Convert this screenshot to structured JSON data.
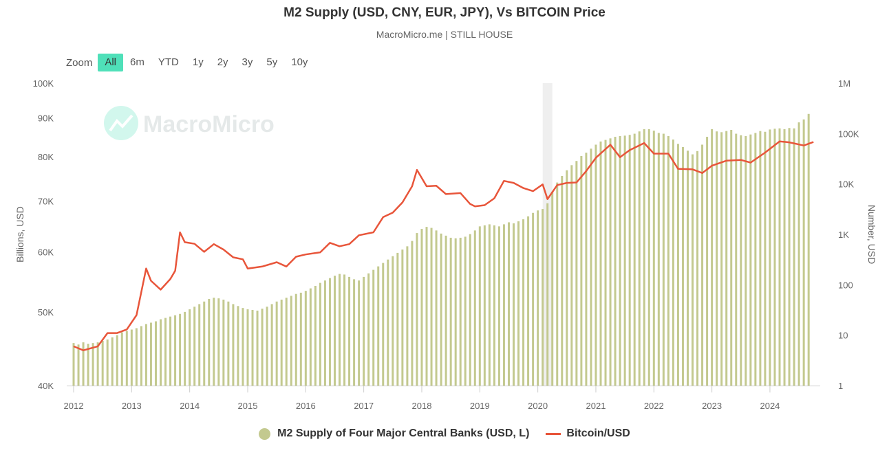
{
  "header": {
    "title": "M2 Supply (USD, CNY, EUR, JPY), Vs BITCOIN Price",
    "subtitle": "MacroMicro.me | STILL HOUSE"
  },
  "zoom": {
    "label": "Zoom",
    "buttons": [
      "All",
      "6m",
      "YTD",
      "1y",
      "2y",
      "3y",
      "5y",
      "10y"
    ],
    "active": "All"
  },
  "watermark": {
    "text": "MacroMicro"
  },
  "colors": {
    "bars": "#c3c98f",
    "line": "#e8553a",
    "active_button": "#4fe0b9",
    "shade": "#efefef"
  },
  "chart_data": {
    "type": "bar+line",
    "title": "M2 Supply (USD, CNY, EUR, JPY), Vs BITCOIN Price",
    "xlabel": "",
    "x_ticks": [
      "2012",
      "2013",
      "2014",
      "2015",
      "2016",
      "2017",
      "2018",
      "2019",
      "2020",
      "2021",
      "2022",
      "2023",
      "2024"
    ],
    "left_axis": {
      "label": "Billions, USD",
      "scale": "log",
      "range": [
        40000,
        100000
      ],
      "ticks": [
        "40K",
        "50K",
        "60K",
        "70K",
        "80K",
        "90K",
        "100K"
      ],
      "tick_values": [
        40000,
        50000,
        60000,
        70000,
        80000,
        90000,
        100000
      ]
    },
    "right_axis": {
      "label": "Number, USD",
      "scale": "log",
      "range": [
        1,
        1000000
      ],
      "ticks": [
        "1",
        "10",
        "100",
        "1K",
        "10K",
        "100K",
        "1M"
      ],
      "tick_values": [
        1,
        10,
        100,
        1000,
        10000,
        100000,
        1000000
      ]
    },
    "shaded_period": [
      "2020-02",
      "2020-04"
    ],
    "legend_position": "bottom",
    "grid": false,
    "series": [
      {
        "name": "M2 Supply of Four Major Central Banks (USD, L)",
        "type": "bar",
        "axis": "left",
        "unit": "billions USD",
        "start": "2012-01",
        "frequency": "monthly",
        "values": [
          45500,
          45300,
          45600,
          45400,
          45500,
          45600,
          45800,
          46000,
          46300,
          46600,
          47000,
          47200,
          47400,
          47600,
          47900,
          48200,
          48400,
          48600,
          48900,
          49100,
          49300,
          49500,
          49700,
          50000,
          50400,
          50800,
          51200,
          51600,
          52000,
          52200,
          52100,
          51900,
          51600,
          51200,
          50900,
          50600,
          50400,
          50300,
          50200,
          50500,
          50800,
          51200,
          51600,
          51900,
          52200,
          52500,
          52800,
          53000,
          53300,
          53700,
          54100,
          54600,
          55000,
          55400,
          55800,
          56100,
          56000,
          55600,
          55200,
          55000,
          55600,
          56200,
          56800,
          57400,
          58000,
          58600,
          59200,
          59800,
          60400,
          61000,
          62000,
          63500,
          64300,
          64700,
          64500,
          64000,
          63400,
          63000,
          62600,
          62500,
          62600,
          62800,
          63300,
          64000,
          64800,
          65000,
          65200,
          65000,
          64800,
          65200,
          65600,
          65400,
          65800,
          66200,
          66800,
          67500,
          68000,
          68300,
          69500,
          72000,
          74000,
          75500,
          76800,
          78000,
          79000,
          80200,
          81000,
          82000,
          83000,
          83800,
          84200,
          84600,
          85000,
          85200,
          85300,
          85500,
          85800,
          86400,
          87000,
          87000,
          86600,
          86000,
          85800,
          85200,
          84300,
          83200,
          82400,
          81500,
          80600,
          81400,
          83000,
          85000,
          87000,
          86400,
          86200,
          86500,
          86800,
          85800,
          85400,
          85200,
          85600,
          86000,
          86500,
          86300,
          86900,
          87100,
          87200,
          87000,
          87300,
          87200,
          88800,
          89600,
          91100
        ]
      },
      {
        "name": "Bitcoin/USD",
        "type": "line",
        "axis": "right",
        "unit": "USD",
        "points": [
          [
            "2012-01",
            6
          ],
          [
            "2012-03",
            5
          ],
          [
            "2012-06",
            6
          ],
          [
            "2012-08",
            11
          ],
          [
            "2012-10",
            11
          ],
          [
            "2012-12",
            13
          ],
          [
            "2013-02",
            25
          ],
          [
            "2013-04",
            210
          ],
          [
            "2013-05",
            120
          ],
          [
            "2013-07",
            80
          ],
          [
            "2013-09",
            130
          ],
          [
            "2013-10",
            190
          ],
          [
            "2013-11",
            1100
          ],
          [
            "2013-12",
            700
          ],
          [
            "2014-02",
            650
          ],
          [
            "2014-04",
            450
          ],
          [
            "2014-06",
            640
          ],
          [
            "2014-08",
            500
          ],
          [
            "2014-10",
            350
          ],
          [
            "2014-12",
            320
          ],
          [
            "2015-01",
            210
          ],
          [
            "2015-04",
            230
          ],
          [
            "2015-07",
            280
          ],
          [
            "2015-09",
            230
          ],
          [
            "2015-11",
            360
          ],
          [
            "2016-01",
            400
          ],
          [
            "2016-04",
            440
          ],
          [
            "2016-06",
            680
          ],
          [
            "2016-08",
            580
          ],
          [
            "2016-10",
            640
          ],
          [
            "2016-12",
            960
          ],
          [
            "2017-03",
            1100
          ],
          [
            "2017-05",
            2200
          ],
          [
            "2017-07",
            2700
          ],
          [
            "2017-09",
            4300
          ],
          [
            "2017-11",
            9000
          ],
          [
            "2017-12",
            19000
          ],
          [
            "2018-02",
            9000
          ],
          [
            "2018-04",
            9200
          ],
          [
            "2018-06",
            6300
          ],
          [
            "2018-09",
            6600
          ],
          [
            "2018-11",
            4000
          ],
          [
            "2018-12",
            3600
          ],
          [
            "2019-02",
            3800
          ],
          [
            "2019-04",
            5200
          ],
          [
            "2019-06",
            11500
          ],
          [
            "2019-08",
            10500
          ],
          [
            "2019-10",
            8300
          ],
          [
            "2019-12",
            7200
          ],
          [
            "2020-02",
            9800
          ],
          [
            "2020-03",
            5000
          ],
          [
            "2020-05",
            9500
          ],
          [
            "2020-07",
            10500
          ],
          [
            "2020-09",
            10700
          ],
          [
            "2020-11",
            18000
          ],
          [
            "2021-01",
            33000
          ],
          [
            "2021-04",
            60000
          ],
          [
            "2021-06",
            34000
          ],
          [
            "2021-08",
            47000
          ],
          [
            "2021-11",
            65000
          ],
          [
            "2022-01",
            40000
          ],
          [
            "2022-04",
            40000
          ],
          [
            "2022-06",
            20000
          ],
          [
            "2022-09",
            19500
          ],
          [
            "2022-11",
            16500
          ],
          [
            "2023-01",
            23000
          ],
          [
            "2023-04",
            29000
          ],
          [
            "2023-07",
            30000
          ],
          [
            "2023-09",
            26500
          ],
          [
            "2023-12",
            42000
          ],
          [
            "2024-03",
            70000
          ],
          [
            "2024-05",
            67000
          ],
          [
            "2024-08",
            58000
          ],
          [
            "2024-10",
            68000
          ]
        ]
      }
    ]
  }
}
